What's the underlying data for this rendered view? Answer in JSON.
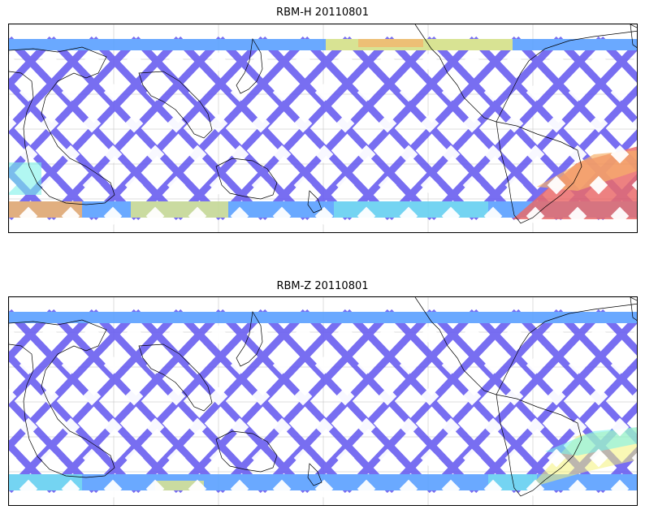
{
  "panels": [
    {
      "title": "RBM-H 20110801",
      "variant": "h"
    },
    {
      "title": "RBM-Z 20110801",
      "variant": "z"
    }
  ],
  "colors": {
    "track_low": "#6a5ff0",
    "track_mid": "#5aa0ff",
    "track_cyan": "#6ef0e8",
    "track_yellow": "#f2f06a",
    "track_orange": "#f6a85a",
    "track_high": "#e85a5a",
    "coast": "#000000",
    "grid": "#bdbdbd"
  },
  "icons": {
    "map": "world-map-equirectangular-pacific-centered"
  }
}
